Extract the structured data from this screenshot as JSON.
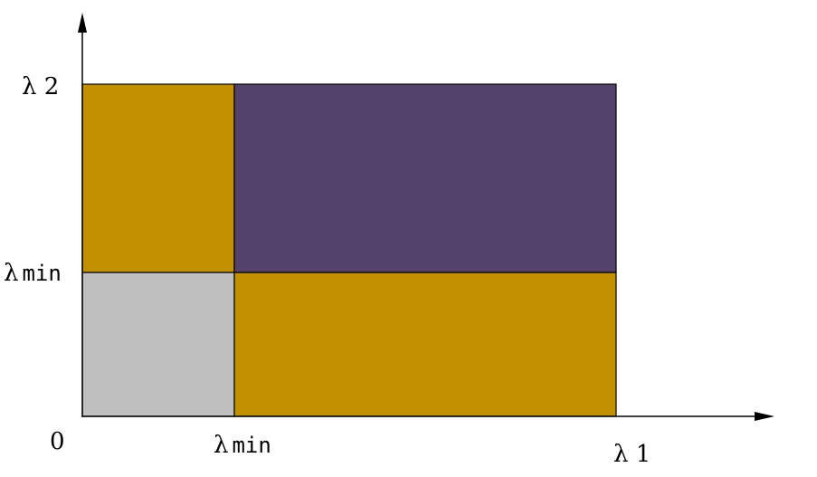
{
  "labels": {
    "origin": "0",
    "y_top": "λ 2",
    "y_mid_sym": "λ",
    "y_mid_sub": "min",
    "x_mid_sym": "λ",
    "x_mid_sub": "min",
    "x_end": "λ 1"
  },
  "regions": [
    {
      "name": "region-low-low",
      "color": "#c0c0c0"
    },
    {
      "name": "region-low-high",
      "color": "#c19000"
    },
    {
      "name": "region-high-low",
      "color": "#c19000"
    },
    {
      "name": "region-high-high",
      "color": "#55426a"
    }
  ],
  "colors": {
    "axis": "#000000",
    "border": "#000000"
  }
}
